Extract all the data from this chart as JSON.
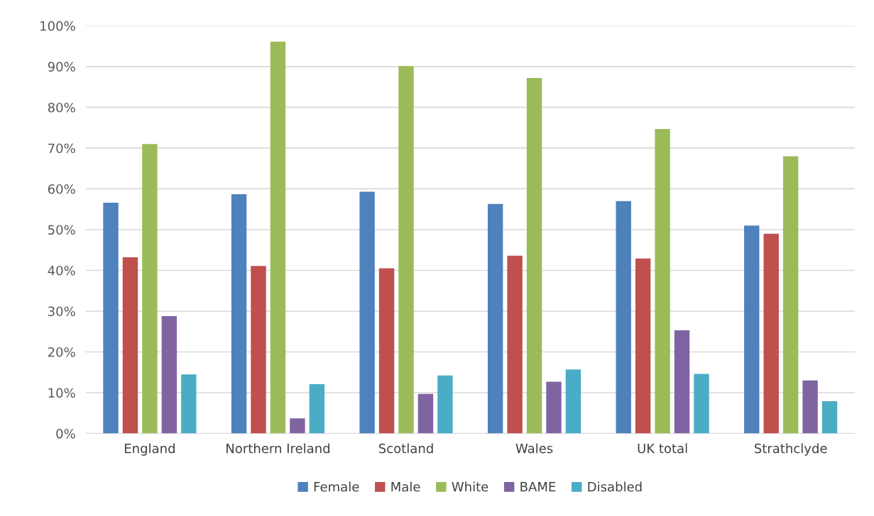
{
  "chart_data": {
    "type": "bar",
    "categories": [
      "England",
      "Northern Ireland",
      "Scotland",
      "Wales",
      "UK total",
      "Strathclyde"
    ],
    "series": [
      {
        "name": "Female",
        "color": "#4f81bd",
        "values": [
          56.6,
          58.7,
          59.3,
          56.3,
          57.0,
          51.0
        ]
      },
      {
        "name": "Male",
        "color": "#c0504d",
        "values": [
          43.2,
          41.1,
          40.5,
          43.6,
          42.9,
          49.0
        ]
      },
      {
        "name": "White",
        "color": "#9bbb59",
        "values": [
          71.0,
          96.1,
          90.1,
          87.2,
          74.7,
          68.0
        ]
      },
      {
        "name": "BAME",
        "color": "#8064a2",
        "values": [
          28.8,
          3.7,
          9.7,
          12.7,
          25.3,
          13.0
        ]
      },
      {
        "name": "Disabled",
        "color": "#4bacc6",
        "values": [
          14.5,
          12.1,
          14.2,
          15.7,
          14.6,
          7.9
        ]
      }
    ],
    "ylim": [
      0,
      100
    ],
    "yticks": [
      {
        "value": 0,
        "label": "0%"
      },
      {
        "value": 10,
        "label": "10%"
      },
      {
        "value": 20,
        "label": "20%"
      },
      {
        "value": 30,
        "label": "30%"
      },
      {
        "value": 40,
        "label": "40%"
      },
      {
        "value": 50,
        "label": "50%"
      },
      {
        "value": 60,
        "label": "60%"
      },
      {
        "value": 70,
        "label": "70%"
      },
      {
        "value": 80,
        "label": "80%"
      },
      {
        "value": 90,
        "label": "90%"
      },
      {
        "value": 100,
        "label": "100%"
      }
    ],
    "grid": "y",
    "legend": "bottom"
  }
}
